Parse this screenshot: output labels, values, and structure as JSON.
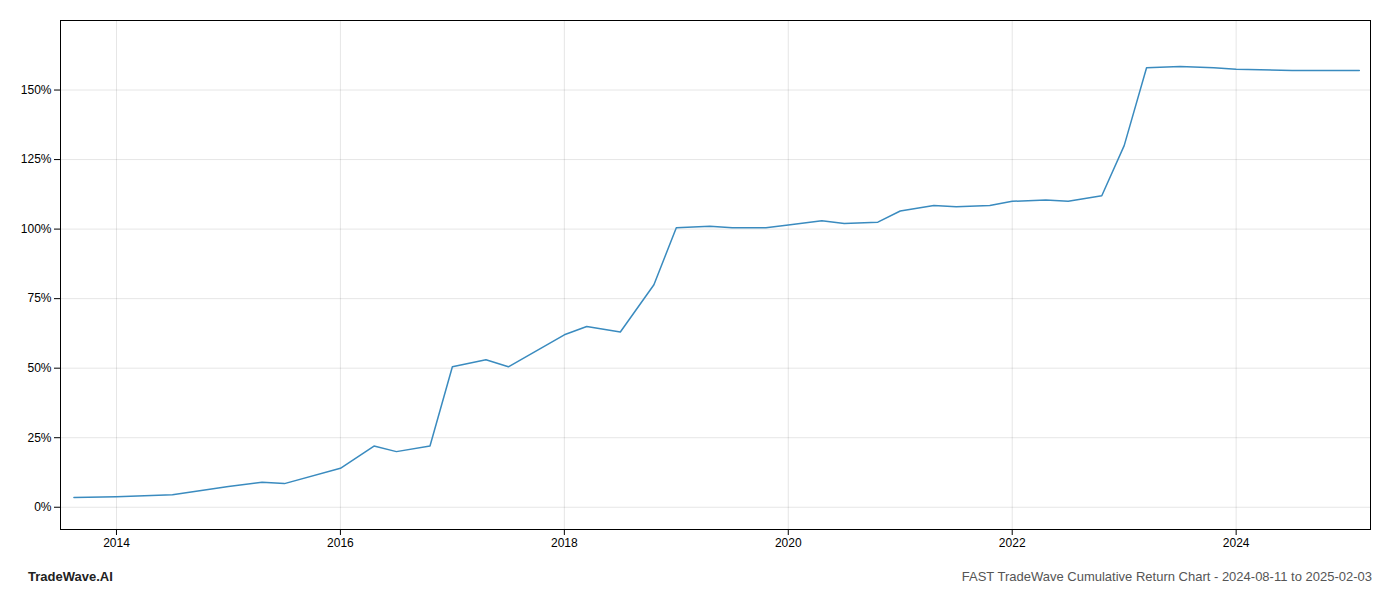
{
  "chart_data": {
    "type": "line",
    "title": "TradeWave.AI",
    "subtitle": "FAST TradeWave Cumulative Return Chart - 2024-08-11 to 2025-02-03",
    "color": "#3a8bbf",
    "grid": true,
    "xlim": [
      2013.5,
      2025.2
    ],
    "xticks": [
      2014,
      2016,
      2018,
      2020,
      2022,
      2024
    ],
    "ylim": [
      -8,
      175
    ],
    "yticks": [
      {
        "value": 0,
        "label": "0%"
      },
      {
        "value": 25,
        "label": "25%"
      },
      {
        "value": 50,
        "label": "50%"
      },
      {
        "value": 75,
        "label": "75%"
      },
      {
        "value": 100,
        "label": "100%"
      },
      {
        "value": 125,
        "label": "125%"
      },
      {
        "value": 150,
        "label": "150%"
      }
    ],
    "x": [
      2013.62,
      2014.0,
      2014.5,
      2015.0,
      2015.3,
      2015.5,
      2016.0,
      2016.3,
      2016.5,
      2016.8,
      2017.0,
      2017.3,
      2017.5,
      2018.0,
      2018.2,
      2018.5,
      2018.8,
      2019.0,
      2019.3,
      2019.5,
      2019.8,
      2020.0,
      2020.3,
      2020.5,
      2020.8,
      2021.0,
      2021.3,
      2021.5,
      2021.8,
      2022.0,
      2022.3,
      2022.5,
      2022.8,
      2023.0,
      2023.2,
      2023.5,
      2023.8,
      2024.0,
      2024.5,
      2025.1
    ],
    "values": [
      3.5,
      3.8,
      4.5,
      7.5,
      9.0,
      8.5,
      14.0,
      22.0,
      20.0,
      22.0,
      50.5,
      53.0,
      50.5,
      62.0,
      65.0,
      63.0,
      80.0,
      100.5,
      101.0,
      100.5,
      100.5,
      101.5,
      103.0,
      102.0,
      102.5,
      106.5,
      108.5,
      108.0,
      108.5,
      110.0,
      110.5,
      110.0,
      112.0,
      130.0,
      158.0,
      158.5,
      158.0,
      157.5,
      157.0,
      157.0
    ]
  }
}
